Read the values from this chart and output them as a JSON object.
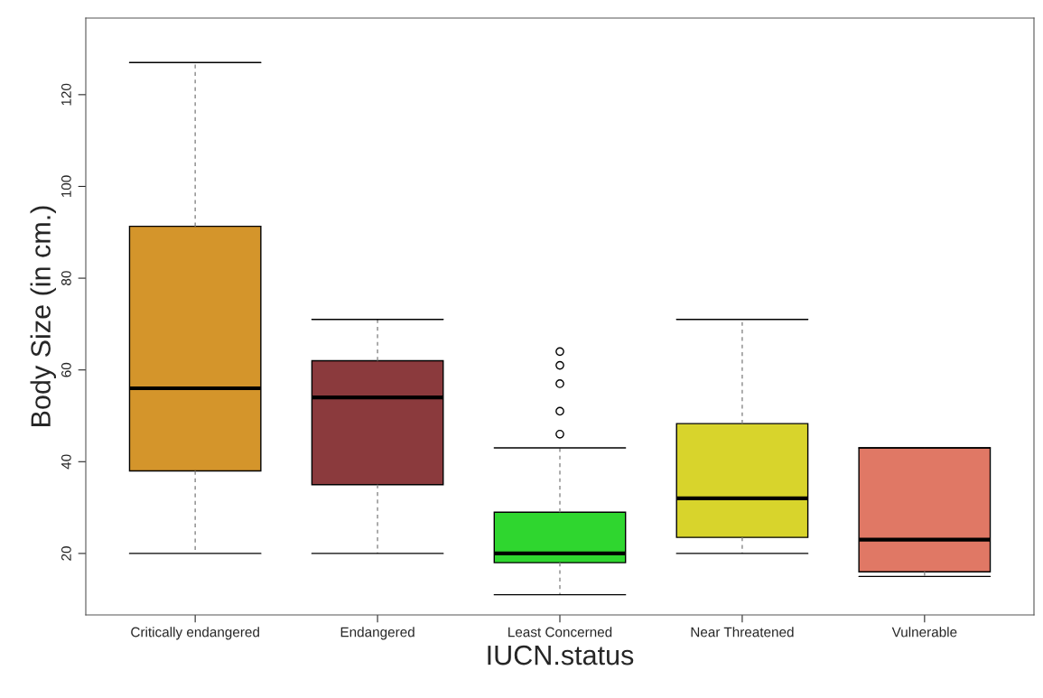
{
  "chart_data": {
    "type": "box",
    "xlabel": "IUCN.status",
    "ylabel": "Body Size (in cm.)",
    "categories": [
      "Critically endangered",
      "Endangered",
      "Least Concerned",
      "Near Threatened",
      "Vulnerable"
    ],
    "colors": [
      "#d4952b",
      "#8b3a3d",
      "#2fd62f",
      "#d8d42c",
      "#e07865"
    ],
    "boxes": [
      {
        "low": 20,
        "q1": 38,
        "median": 56,
        "q3": 91.3,
        "high": 127
      },
      {
        "low": 20,
        "q1": 35,
        "median": 54,
        "q3": 62,
        "high": 71
      },
      {
        "low": 11,
        "q1": 18,
        "median": 20,
        "q3": 29,
        "high": 43,
        "outliers": [
          46,
          51,
          57,
          61,
          64
        ]
      },
      {
        "low": 20,
        "q1": 23.5,
        "median": 32,
        "q3": 48.3,
        "high": 71
      },
      {
        "low": 15,
        "q1": 16,
        "median": 23,
        "q3": 43,
        "high": 43
      }
    ],
    "ylim": [
      6.6,
      136.7
    ],
    "yticks": [
      20,
      40,
      60,
      80,
      100,
      120
    ],
    "grid": false,
    "legend": false
  }
}
